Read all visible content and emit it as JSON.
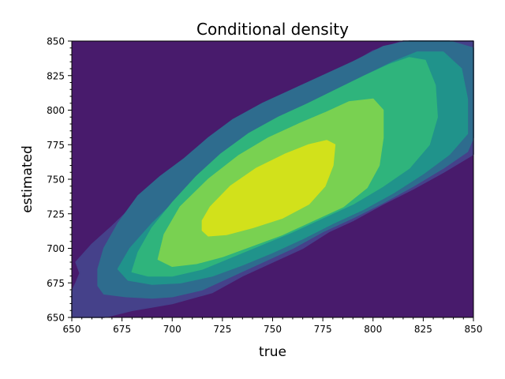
{
  "chart_data": {
    "type": "contour",
    "title": "Conditional density",
    "xlabel": "true",
    "ylabel": "estimated",
    "xlim": [
      650,
      850
    ],
    "ylim": [
      650,
      850
    ],
    "xticks": [
      650,
      675,
      700,
      725,
      750,
      775,
      800,
      825,
      850
    ],
    "yticks": [
      650,
      675,
      700,
      725,
      750,
      775,
      800,
      825,
      850
    ],
    "x_tick_labels": [
      "650",
      "675",
      "700",
      "725",
      "750",
      "775",
      "800",
      "825",
      "850"
    ],
    "y_tick_labels": [
      "650",
      "675",
      "700",
      "725",
      "750",
      "775",
      "800",
      "825",
      "850"
    ],
    "colormap": "viridis",
    "background_color": "#481b6c",
    "grid": false,
    "legend": "none",
    "levels": [
      {
        "level": 1,
        "color": "#45418a",
        "contours": [
          [
            [
              652,
              690
            ],
            [
              654,
              682
            ],
            [
              652,
              675
            ],
            [
              650,
              669
            ],
            [
              650,
              650
            ],
            [
              666,
              650
            ],
            [
              680,
              655
            ],
            [
              700,
              660
            ],
            [
              720,
              668
            ],
            [
              735,
              680
            ],
            [
              750,
              690
            ],
            [
              765,
              700
            ],
            [
              778,
              712
            ],
            [
              790,
              720
            ],
            [
              805,
              732
            ],
            [
              820,
              743
            ],
            [
              835,
              755
            ],
            [
              850,
              768
            ],
            [
              850,
              850
            ],
            [
              832,
              850
            ],
            [
              815,
              850
            ],
            [
              800,
              843
            ],
            [
              785,
              830
            ],
            [
              770,
              818
            ],
            [
              755,
              805
            ],
            [
              740,
              795
            ],
            [
              725,
              785
            ],
            [
              710,
              770
            ],
            [
              700,
              755
            ],
            [
              690,
              742
            ],
            [
              680,
              730
            ],
            [
              670,
              716
            ],
            [
              660,
              703
            ],
            [
              652,
              690
            ]
          ]
        ]
      },
      {
        "level": 2,
        "color": "#2e6c8e",
        "contours": [
          [
            [
              663,
              673
            ],
            [
              666,
              667
            ],
            [
              677,
              665
            ],
            [
              690,
              664
            ],
            [
              700,
              665
            ],
            [
              715,
              670
            ],
            [
              730,
              680
            ],
            [
              745,
              690
            ],
            [
              760,
              700
            ],
            [
              775,
              712
            ],
            [
              790,
              722
            ],
            [
              805,
              733
            ],
            [
              820,
              745
            ],
            [
              835,
              758
            ],
            [
              847,
              770
            ],
            [
              850,
              780
            ],
            [
              850,
              845
            ],
            [
              838,
              850
            ],
            [
              818,
              850
            ],
            [
              805,
              846
            ],
            [
              790,
              835
            ],
            [
              775,
              825
            ],
            [
              760,
              815
            ],
            [
              745,
              805
            ],
            [
              730,
              793
            ],
            [
              718,
              780
            ],
            [
              706,
              765
            ],
            [
              694,
              752
            ],
            [
              683,
              738
            ],
            [
              673,
              718
            ],
            [
              666,
              700
            ],
            [
              663,
              685
            ],
            [
              663,
              673
            ]
          ]
        ]
      },
      {
        "level": 3,
        "color": "#20938b",
        "contours": [
          [
            [
              673,
              685
            ],
            [
              678,
              677
            ],
            [
              690,
              674
            ],
            [
              704,
              675
            ],
            [
              720,
              680
            ],
            [
              735,
              688
            ],
            [
              750,
              697
            ],
            [
              765,
              707
            ],
            [
              780,
              718
            ],
            [
              795,
              728
            ],
            [
              810,
              740
            ],
            [
              825,
              754
            ],
            [
              838,
              768
            ],
            [
              847,
              783
            ],
            [
              847,
              808
            ],
            [
              844,
              830
            ],
            [
              835,
              842
            ],
            [
              822,
              842
            ],
            [
              810,
              835
            ],
            [
              796,
              825
            ],
            [
              782,
              815
            ],
            [
              768,
              805
            ],
            [
              754,
              793
            ],
            [
              740,
              780
            ],
            [
              727,
              767
            ],
            [
              714,
              752
            ],
            [
              702,
              735
            ],
            [
              690,
              718
            ],
            [
              679,
              700
            ],
            [
              673,
              685
            ]
          ]
        ]
      },
      {
        "level": 4,
        "color": "#2fb47c",
        "contours": [
          [
            [
              680,
              683
            ],
            [
              688,
              680
            ],
            [
              700,
              680
            ],
            [
              715,
              685
            ],
            [
              730,
              694
            ],
            [
              745,
              703
            ],
            [
              760,
              712
            ],
            [
              775,
              722
            ],
            [
              790,
              732
            ],
            [
              805,
              745
            ],
            [
              818,
              758
            ],
            [
              828,
              775
            ],
            [
              832,
              795
            ],
            [
              831,
              818
            ],
            [
              826,
              836
            ],
            [
              818,
              838
            ],
            [
              808,
              833
            ],
            [
              796,
              825
            ],
            [
              782,
              815
            ],
            [
              768,
              805
            ],
            [
              753,
              795
            ],
            [
              738,
              783
            ],
            [
              724,
              768
            ],
            [
              712,
              752
            ],
            [
              700,
              733
            ],
            [
              690,
              715
            ],
            [
              683,
              697
            ],
            [
              680,
              683
            ]
          ]
        ]
      },
      {
        "level": 5,
        "color": "#79d151",
        "contours": [
          [
            [
              693,
              692
            ],
            [
              700,
              687
            ],
            [
              712,
              689
            ],
            [
              725,
              694
            ],
            [
              740,
              702
            ],
            [
              755,
              710
            ],
            [
              770,
              720
            ],
            [
              785,
              730
            ],
            [
              797,
              744
            ],
            [
              803,
              760
            ],
            [
              805,
              780
            ],
            [
              805,
              800
            ],
            [
              800,
              808
            ],
            [
              788,
              806
            ],
            [
              776,
              798
            ],
            [
              763,
              790
            ],
            [
              748,
              780
            ],
            [
              733,
              767
            ],
            [
              718,
              750
            ],
            [
              704,
              730
            ],
            [
              696,
              710
            ],
            [
              693,
              692
            ]
          ]
        ]
      },
      {
        "level": 6,
        "color": "#d2e11b",
        "contours": [
          [
            [
              715,
              713
            ],
            [
              718,
              709
            ],
            [
              727,
              710
            ],
            [
              740,
              715
            ],
            [
              755,
              722
            ],
            [
              768,
              732
            ],
            [
              776,
              745
            ],
            [
              780,
              760
            ],
            [
              781,
              775
            ],
            [
              777,
              778
            ],
            [
              768,
              775
            ],
            [
              756,
              768
            ],
            [
              742,
              758
            ],
            [
              729,
              745
            ],
            [
              719,
              730
            ],
            [
              715,
              720
            ],
            [
              715,
              713
            ]
          ]
        ]
      }
    ]
  }
}
